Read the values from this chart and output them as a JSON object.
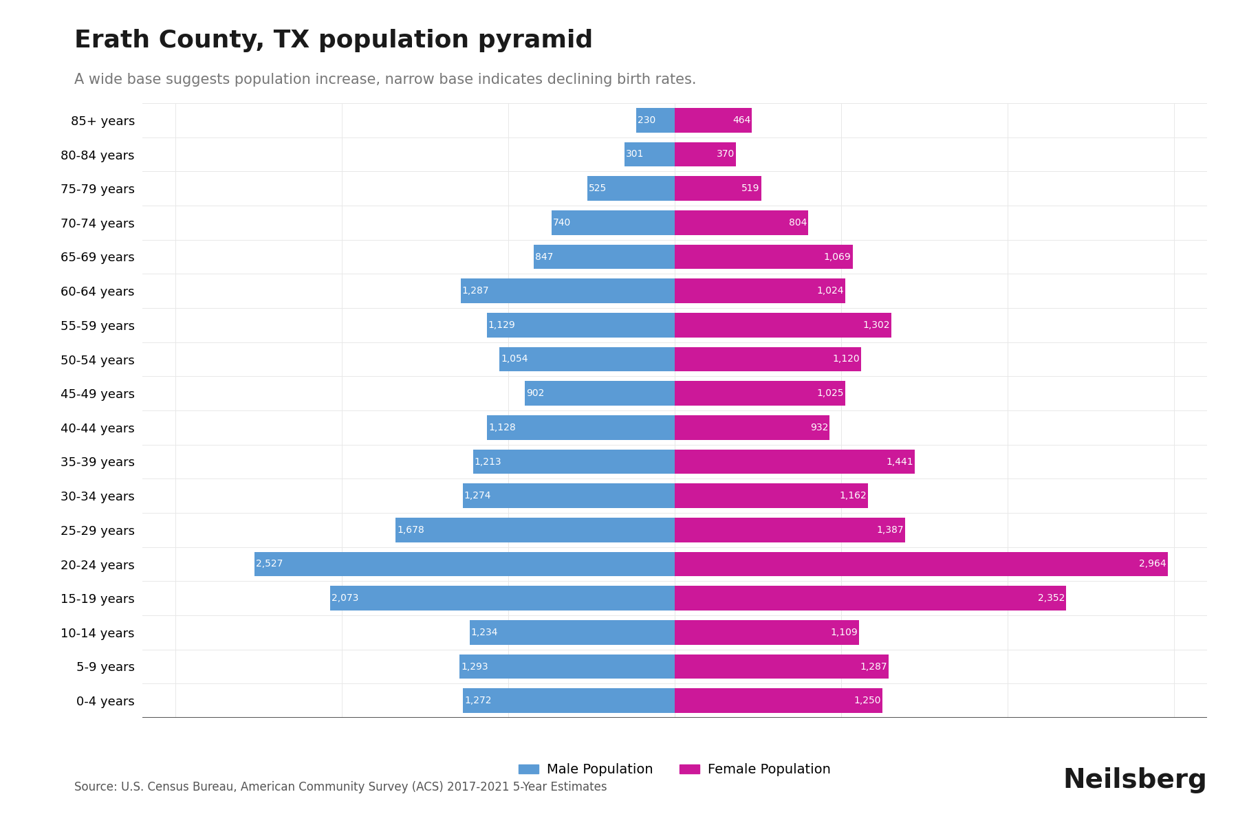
{
  "title": "Erath County, TX population pyramid",
  "subtitle": "A wide base suggests population increase, narrow base indicates declining birth rates.",
  "source": "Source: U.S. Census Bureau, American Community Survey (ACS) 2017-2021 5-Year Estimates",
  "age_groups": [
    "0-4 years",
    "5-9 years",
    "10-14 years",
    "15-19 years",
    "20-24 years",
    "25-29 years",
    "30-34 years",
    "35-39 years",
    "40-44 years",
    "45-49 years",
    "50-54 years",
    "55-59 years",
    "60-64 years",
    "65-69 years",
    "70-74 years",
    "75-79 years",
    "80-84 years",
    "85+ years"
  ],
  "male": [
    1272,
    1293,
    1234,
    2073,
    2527,
    1678,
    1274,
    1213,
    1128,
    902,
    1054,
    1129,
    1287,
    847,
    740,
    525,
    301,
    230
  ],
  "female": [
    1250,
    1287,
    1109,
    2352,
    2964,
    1387,
    1162,
    1441,
    932,
    1025,
    1120,
    1302,
    1024,
    1069,
    804,
    519,
    370,
    464
  ],
  "male_color": "#5B9BD5",
  "female_color": "#CC1899",
  "background_color": "#FFFFFF",
  "title_fontsize": 26,
  "subtitle_fontsize": 15,
  "bar_label_fontsize": 10,
  "tick_fontsize": 13,
  "legend_fontsize": 14,
  "source_fontsize": 12,
  "brand_fontsize": 28,
  "brand_text": "Neilsberg",
  "max_val": 3200
}
